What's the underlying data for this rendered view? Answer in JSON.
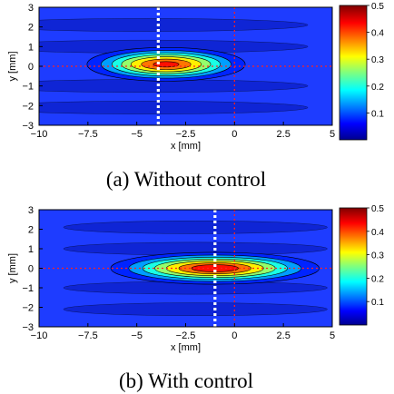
{
  "chart_data": [
    {
      "type": "heatmap",
      "caption": "(a) Without control",
      "xlabel": "x [mm]",
      "ylabel": "y [mm]",
      "xlim": [
        -10,
        5
      ],
      "ylim": [
        -3,
        3
      ],
      "x_ticks": [
        "−10",
        "−7.5",
        "−5",
        "−2.5",
        "0",
        "2.5",
        "5"
      ],
      "y_ticks": [
        "3",
        "2",
        "1",
        "0",
        "−1",
        "−2",
        "−3"
      ],
      "colorbar": {
        "range": [
          0,
          0.5
        ],
        "ticks": [
          "0.5",
          "0.4",
          "0.3",
          "0.2",
          "0.1"
        ],
        "colormap": "jet"
      },
      "peak": {
        "x": -3.5,
        "y": 0.1,
        "value": 0.45
      },
      "white_dotted_line_x": -3.9,
      "red_dotted_lines": {
        "x": 0,
        "y": 0
      }
    },
    {
      "type": "heatmap",
      "caption": "(b) With control",
      "xlabel": "x [mm]",
      "ylabel": "y [mm]",
      "xlim": [
        -10,
        5
      ],
      "ylim": [
        -3,
        3
      ],
      "x_ticks": [
        "−10",
        "−7.5",
        "−5",
        "−2.5",
        "0",
        "2.5",
        "5"
      ],
      "y_ticks": [
        "3",
        "2",
        "1",
        "0",
        "−1",
        "−2",
        "−3"
      ],
      "colorbar": {
        "range": [
          0,
          0.5
        ],
        "ticks": [
          "0.5",
          "0.4",
          "0.3",
          "0.2",
          "0.1"
        ],
        "colormap": "jet"
      },
      "peak": {
        "x": -1.0,
        "y": 0.0,
        "value": 0.47
      },
      "white_dotted_line_x": -1.0,
      "red_dotted_lines": {
        "x": 0,
        "y": 0
      }
    }
  ]
}
